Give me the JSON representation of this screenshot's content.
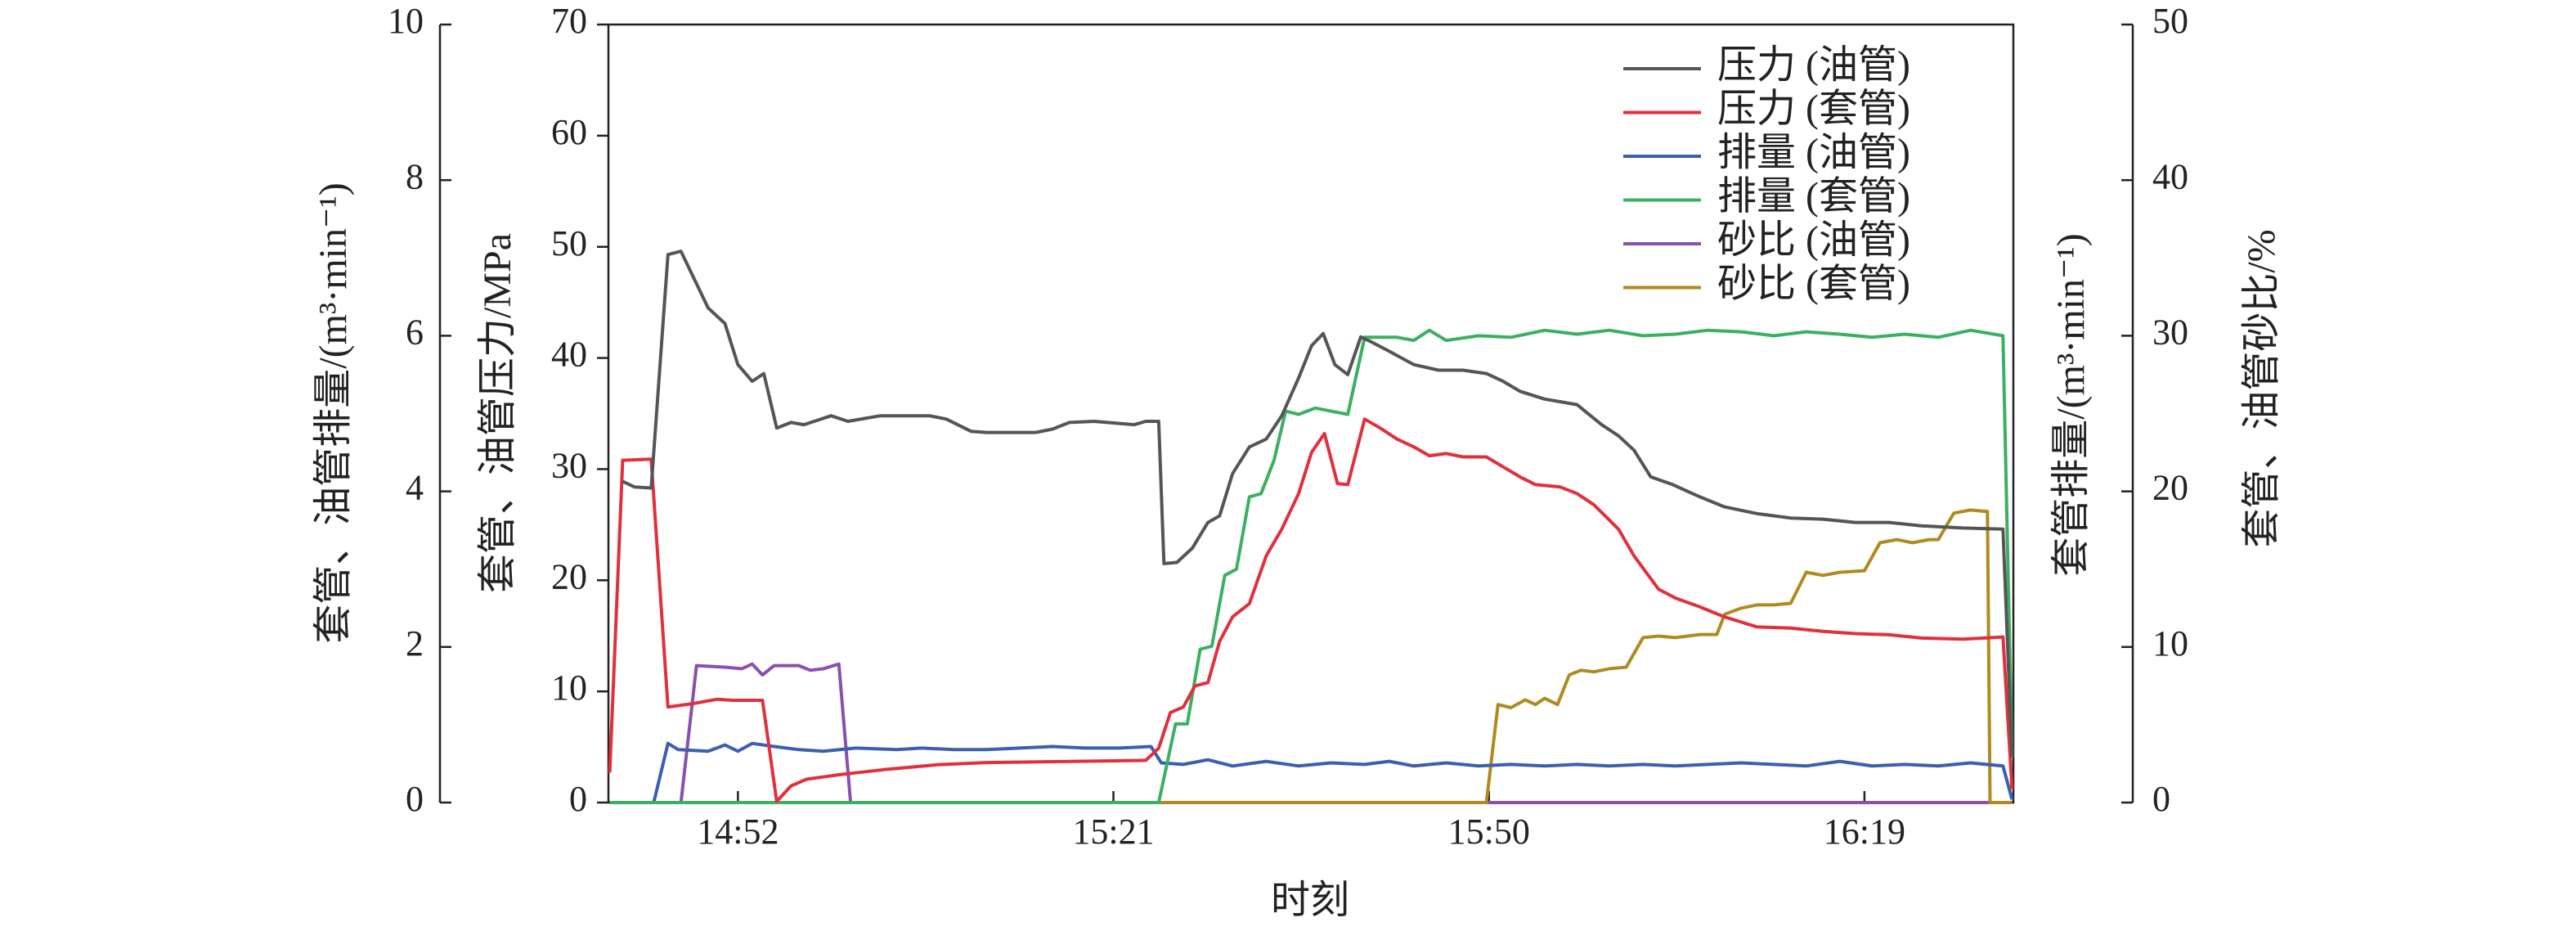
{
  "chart_data": {
    "type": "line",
    "xlabel": "时刻",
    "ylabel": "套管、油管压力/MPa",
    "y2label": "套管、油管砂比/%",
    "y3label": "套管、油管排量/(m³·min⁻¹)",
    "y4label": "套管排量/(m³·min⁻¹)",
    "xlim": [
      882,
      990.5
    ],
    "xticks": [
      {
        "value": 892,
        "label": "14:52"
      },
      {
        "value": 921,
        "label": "15:21"
      },
      {
        "value": 950,
        "label": "15:50"
      },
      {
        "value": 979,
        "label": "16:19"
      }
    ],
    "ylim": [
      0,
      70
    ],
    "yticks": [
      0,
      10,
      20,
      30,
      40,
      50,
      60,
      70
    ],
    "y2lim": [
      0,
      50
    ],
    "y2ticks": [
      0,
      10,
      20,
      30,
      40,
      50
    ],
    "y3lim": [
      0,
      10
    ],
    "y3ticks": [
      0,
      2,
      4,
      6,
      8,
      10
    ],
    "legend": "upper right",
    "series": [
      {
        "name": "压力 (油管)",
        "color": "#555555",
        "axis": "y",
        "x": [
          883.1,
          884.0,
          885.3,
          886.6,
          887.6,
          889.7,
          891.0,
          892.0,
          893.1,
          894.0,
          895.0,
          896.1,
          897.1,
          899.2,
          900.5,
          903.0,
          906.8,
          908.1,
          910.0,
          911.2,
          915.0,
          916.3,
          917.6,
          919.5,
          922.6,
          923.5,
          924.5,
          924.9,
          925.9,
          927.1,
          928.3,
          929.2,
          930.2,
          931.5,
          932.8,
          934.0,
          935.3,
          936.3,
          937.2,
          938.1,
          939.1,
          940.1,
          941.0,
          942.3,
          944.2,
          946.1,
          948.0,
          949.8,
          951.1,
          952.4,
          954.3,
          956.8,
          958.7,
          960.0,
          961.2,
          962.5,
          964.2,
          966.3,
          968.2,
          970.7,
          973.3,
          975.8,
          978.3,
          980.9,
          983.4,
          986.6,
          989.7,
          990.4
        ],
        "values": [
          28.9,
          28.4,
          28.3,
          49.3,
          49.6,
          44.5,
          43.1,
          39.4,
          37.9,
          38.6,
          33.7,
          34.2,
          34.0,
          34.8,
          34.3,
          34.8,
          34.8,
          34.5,
          33.4,
          33.3,
          33.3,
          33.6,
          34.2,
          34.3,
          34.0,
          34.3,
          34.3,
          21.5,
          21.6,
          22.9,
          25.2,
          25.8,
          29.6,
          32.0,
          32.7,
          34.8,
          38.2,
          41.1,
          42.2,
          39.4,
          38.5,
          41.9,
          41.4,
          40.6,
          39.4,
          38.9,
          38.9,
          38.6,
          37.9,
          37.0,
          36.3,
          35.8,
          34.0,
          33.0,
          31.7,
          29.3,
          28.6,
          27.5,
          26.6,
          26.0,
          25.6,
          25.5,
          25.2,
          25.2,
          24.9,
          24.7,
          24.6,
          4.1
        ]
      },
      {
        "name": "压力 (套管)",
        "color": "#e0303c",
        "axis": "y",
        "x": [
          882.1,
          883.1,
          885.3,
          886.6,
          888.5,
          890.4,
          891.6,
          893.9,
          895.0,
          896.1,
          897.3,
          899.8,
          903.6,
          907.4,
          911.2,
          917.6,
          923.5,
          924.5,
          925.4,
          926.4,
          927.3,
          928.3,
          929.2,
          930.2,
          931.5,
          932.8,
          934.0,
          935.3,
          936.3,
          937.3,
          938.3,
          939.1,
          940.4,
          941.6,
          942.9,
          944.2,
          945.4,
          946.7,
          948.0,
          949.8,
          951.1,
          952.4,
          953.6,
          955.5,
          956.8,
          958.1,
          960.0,
          961.2,
          963.1,
          964.4,
          966.3,
          968.2,
          970.7,
          973.3,
          975.8,
          978.3,
          980.9,
          983.4,
          986.6,
          989.7,
          990.4
        ],
        "values": [
          2.7,
          30.8,
          30.9,
          8.6,
          8.9,
          9.3,
          9.2,
          9.2,
          0.1,
          1.5,
          2.1,
          2.5,
          3.0,
          3.4,
          3.6,
          3.7,
          3.8,
          4.9,
          8.1,
          8.6,
          10.5,
          10.8,
          14.5,
          16.7,
          17.9,
          22.2,
          24.6,
          27.8,
          31.5,
          33.2,
          28.7,
          28.6,
          34.5,
          33.7,
          32.7,
          32.0,
          31.2,
          31.4,
          31.1,
          31.1,
          30.2,
          29.3,
          28.6,
          28.4,
          27.8,
          26.8,
          24.6,
          22.2,
          19.2,
          18.4,
          17.6,
          16.7,
          15.8,
          15.7,
          15.4,
          15.2,
          15.1,
          14.8,
          14.7,
          14.9,
          1.2
        ]
      },
      {
        "name": "排量 (油管)",
        "color": "#3a5fb0",
        "axis": "y3",
        "x": [
          882.1,
          885.5,
          886.6,
          887.4,
          889.7,
          891.0,
          892.0,
          893.1,
          894.8,
          896.7,
          898.6,
          901.1,
          904.3,
          906.2,
          908.7,
          911.2,
          913.8,
          916.3,
          918.8,
          921.4,
          923.9,
          924.7,
          926.4,
          928.3,
          930.2,
          932.8,
          935.3,
          937.8,
          940.4,
          942.3,
          944.2,
          946.7,
          949.2,
          951.7,
          954.3,
          956.8,
          959.3,
          961.9,
          964.4,
          966.9,
          969.5,
          972.0,
          974.5,
          977.1,
          979.6,
          982.1,
          984.7,
          987.2,
          989.7,
          990.4
        ],
        "values": [
          0,
          0,
          0.76,
          0.68,
          0.66,
          0.74,
          0.66,
          0.76,
          0.72,
          0.68,
          0.66,
          0.7,
          0.68,
          0.7,
          0.68,
          0.68,
          0.7,
          0.72,
          0.7,
          0.7,
          0.72,
          0.51,
          0.49,
          0.55,
          0.47,
          0.53,
          0.47,
          0.51,
          0.49,
          0.53,
          0.47,
          0.51,
          0.47,
          0.49,
          0.47,
          0.49,
          0.47,
          0.49,
          0.47,
          0.49,
          0.51,
          0.49,
          0.47,
          0.53,
          0.47,
          0.49,
          0.47,
          0.51,
          0.47,
          0.04
        ]
      },
      {
        "name": "排量 (套管)",
        "color": "#3bb060",
        "axis": "y3",
        "x": [
          882.1,
          924.5,
          925.8,
          926.7,
          927.7,
          928.6,
          929.6,
          930.5,
          931.5,
          932.4,
          933.4,
          934.3,
          935.3,
          936.6,
          937.8,
          939.1,
          940.4,
          942.9,
          944.2,
          945.4,
          946.7,
          949.2,
          951.7,
          954.3,
          956.8,
          959.3,
          961.9,
          964.4,
          966.9,
          969.5,
          972.0,
          974.5,
          977.1,
          979.6,
          982.1,
          984.7,
          987.2,
          989.7,
          990.4
        ],
        "values": [
          0,
          0,
          1.01,
          1.01,
          1.97,
          2.01,
          2.92,
          3.0,
          3.93,
          3.97,
          4.4,
          5.03,
          4.99,
          5.07,
          5.03,
          4.99,
          5.98,
          5.98,
          5.94,
          6.07,
          5.94,
          6.0,
          5.98,
          6.07,
          6.02,
          6.07,
          6.0,
          6.02,
          6.07,
          6.05,
          6.0,
          6.05,
          6.02,
          5.98,
          6.02,
          5.98,
          6.07,
          6.0,
          0.59
        ]
      },
      {
        "name": "砂比 (油管)",
        "color": "#8a50b0",
        "axis": "y2",
        "x": [
          882.1,
          887.6,
          888.8,
          891.0,
          892.3,
          893.1,
          893.9,
          894.8,
          896.7,
          897.6,
          898.6,
          899.8,
          900.7,
          990.4
        ],
        "values": [
          0,
          0,
          8.8,
          8.7,
          8.6,
          8.9,
          8.2,
          8.8,
          8.8,
          8.5,
          8.6,
          8.9,
          0,
          0
        ]
      },
      {
        "name": "砂比 (套管)",
        "color": "#b08a20",
        "axis": "y2",
        "x": [
          882.1,
          949.8,
          950.7,
          951.7,
          952.8,
          953.6,
          954.3,
          955.3,
          956.2,
          957.1,
          958.1,
          959.3,
          960.6,
          961.9,
          963.1,
          964.4,
          966.3,
          967.6,
          968.2,
          969.5,
          970.7,
          972.0,
          973.3,
          974.5,
          975.8,
          977.1,
          979.0,
          980.2,
          981.5,
          982.7,
          984.0,
          984.7,
          985.9,
          987.2,
          988.5,
          988.7,
          990.4
        ],
        "values": [
          0,
          0,
          6.3,
          6.1,
          6.6,
          6.3,
          6.7,
          6.3,
          8.2,
          8.5,
          8.4,
          8.6,
          8.7,
          10.6,
          10.7,
          10.6,
          10.8,
          10.8,
          12.1,
          12.5,
          12.7,
          12.7,
          12.8,
          14.8,
          14.6,
          14.8,
          14.9,
          16.7,
          16.9,
          16.7,
          16.9,
          16.9,
          18.6,
          18.8,
          18.7,
          0,
          0
        ]
      }
    ]
  }
}
